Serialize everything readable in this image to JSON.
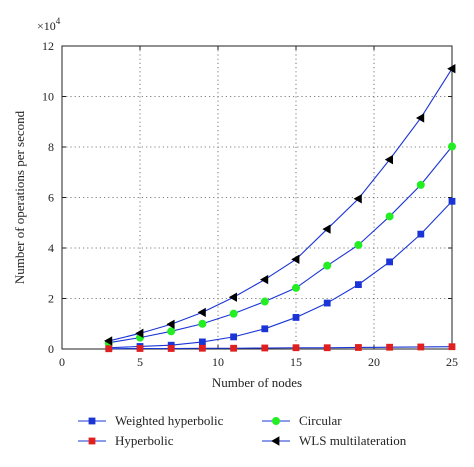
{
  "chart_data": {
    "type": "line",
    "xlabel": "Number of nodes",
    "ylabel": "Number of operations per second",
    "y_multiplier_label": "×10",
    "y_multiplier_exp": "4",
    "x": [
      3,
      5,
      7,
      9,
      11,
      13,
      15,
      17,
      19,
      21,
      23,
      25
    ],
    "xlim": [
      0,
      25
    ],
    "ylim": [
      0,
      12
    ],
    "xticks": [
      0,
      5,
      10,
      15,
      20,
      25
    ],
    "xtick_labels": [
      "0",
      "5",
      "10",
      "15",
      "20",
      "25"
    ],
    "yticks": [
      0,
      2,
      4,
      6,
      8,
      10,
      12
    ],
    "ytick_labels": [
      "0",
      "2",
      "4",
      "6",
      "8",
      "10",
      "12"
    ],
    "grid": true,
    "legend_placement": "bottom",
    "series": [
      {
        "name": "Weighted hyperbolic",
        "marker": "square",
        "color": "#1a34d6",
        "values": [
          0.05,
          0.1,
          0.15,
          0.28,
          0.48,
          0.8,
          1.25,
          1.82,
          2.55,
          3.45,
          4.55,
          5.85
        ]
      },
      {
        "name": "Circular",
        "marker": "circle",
        "color": "#22ee22",
        "values": [
          0.25,
          0.45,
          0.7,
          1.0,
          1.4,
          1.88,
          2.42,
          3.3,
          4.12,
          5.25,
          6.5,
          8.02
        ]
      },
      {
        "name": "Hyperbolic",
        "marker": "square",
        "color": "#e02020",
        "values": [
          0.01,
          0.02,
          0.02,
          0.03,
          0.03,
          0.04,
          0.05,
          0.05,
          0.06,
          0.07,
          0.08,
          0.09
        ]
      },
      {
        "name": "WLS multilateration",
        "marker": "triangle-left",
        "color": "#000000",
        "values": [
          0.32,
          0.62,
          0.98,
          1.45,
          2.05,
          2.75,
          3.55,
          4.75,
          5.95,
          7.5,
          9.15,
          11.1
        ]
      }
    ],
    "line_color": "#1a34d6"
  }
}
